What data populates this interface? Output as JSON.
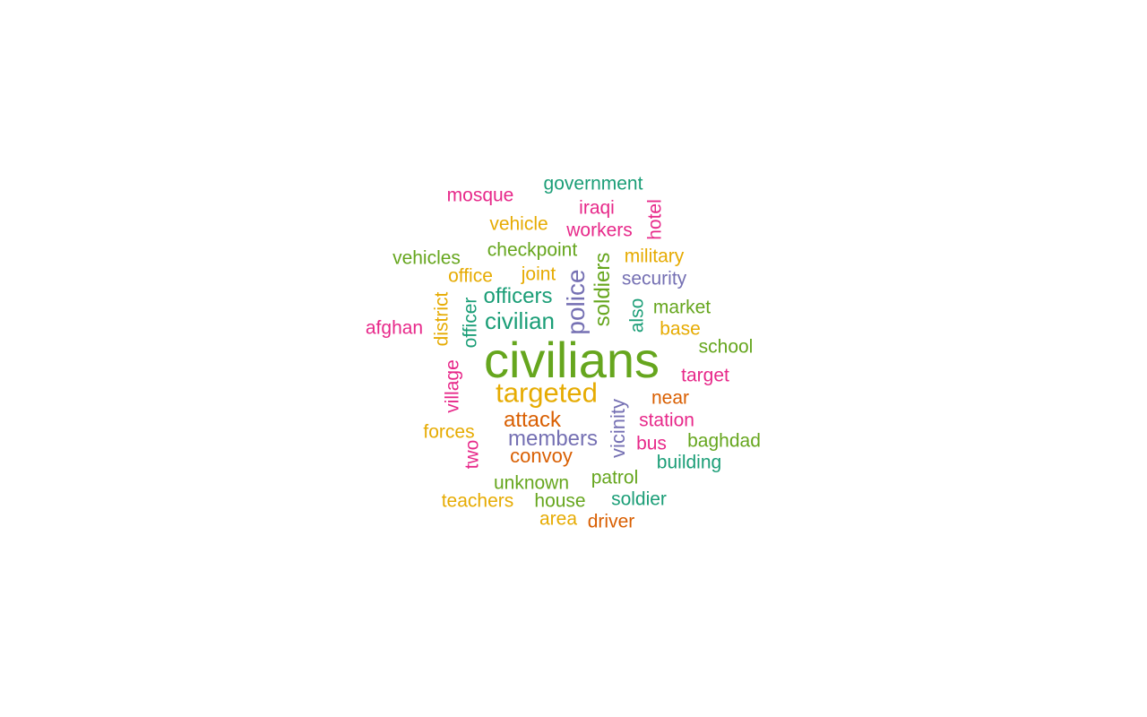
{
  "colors": {
    "green": "#66a61e",
    "teal": "#1b9e77",
    "orange": "#d95f02",
    "purple": "#7570b3",
    "pink": "#e7298a",
    "gold": "#e6ab02"
  },
  "words": {
    "civilians": "civilians",
    "targeted": "targeted",
    "civilian": "civilian",
    "police": "police",
    "soldiers": "soldiers",
    "officers": "officers",
    "members": "members",
    "attack": "attack",
    "convoy": "convoy",
    "vicinity": "vicinity",
    "government": "government",
    "mosque": "mosque",
    "iraqi": "iraqi",
    "hotel": "hotel",
    "vehicle": "vehicle",
    "workers": "workers",
    "checkpoint": "checkpoint",
    "military": "military",
    "vehicles": "vehicles",
    "office": "office",
    "joint": "joint",
    "security": "security",
    "district": "district",
    "officer": "officer",
    "also": "also",
    "market": "market",
    "afghan": "afghan",
    "base": "base",
    "school": "school",
    "target": "target",
    "village": "village",
    "near": "near",
    "station": "station",
    "forces": "forces",
    "bus": "bus",
    "baghdad": "baghdad",
    "two": "two",
    "building": "building",
    "patrol": "patrol",
    "unknown": "unknown",
    "teachers": "teachers",
    "house": "house",
    "soldier": "soldier",
    "area": "area",
    "driver": "driver"
  },
  "word_colors": {
    "civilians": "#66a61e",
    "targeted": "#e6ab02",
    "civilian": "#1b9e77",
    "police": "#7570b3",
    "soldiers": "#66a61e",
    "officers": "#1b9e77",
    "members": "#7570b3",
    "attack": "#d95f02",
    "convoy": "#d95f02",
    "vicinity": "#7570b3",
    "government": "#1b9e77",
    "mosque": "#e7298a",
    "iraqi": "#e7298a",
    "hotel": "#e7298a",
    "vehicle": "#e6ab02",
    "workers": "#e7298a",
    "checkpoint": "#66a61e",
    "military": "#e6ab02",
    "vehicles": "#66a61e",
    "office": "#e6ab02",
    "joint": "#e6ab02",
    "security": "#7570b3",
    "district": "#e6ab02",
    "officer": "#1b9e77",
    "also": "#1b9e77",
    "market": "#66a61e",
    "afghan": "#e7298a",
    "base": "#e6ab02",
    "school": "#66a61e",
    "target": "#e7298a",
    "village": "#e7298a",
    "near": "#d95f02",
    "station": "#e7298a",
    "forces": "#e6ab02",
    "bus": "#e7298a",
    "baghdad": "#66a61e",
    "two": "#e7298a",
    "building": "#1b9e77",
    "patrol": "#66a61e",
    "unknown": "#66a61e",
    "teachers": "#e6ab02",
    "house": "#66a61e",
    "soldier": "#1b9e77",
    "area": "#e6ab02",
    "driver": "#d95f02"
  }
}
